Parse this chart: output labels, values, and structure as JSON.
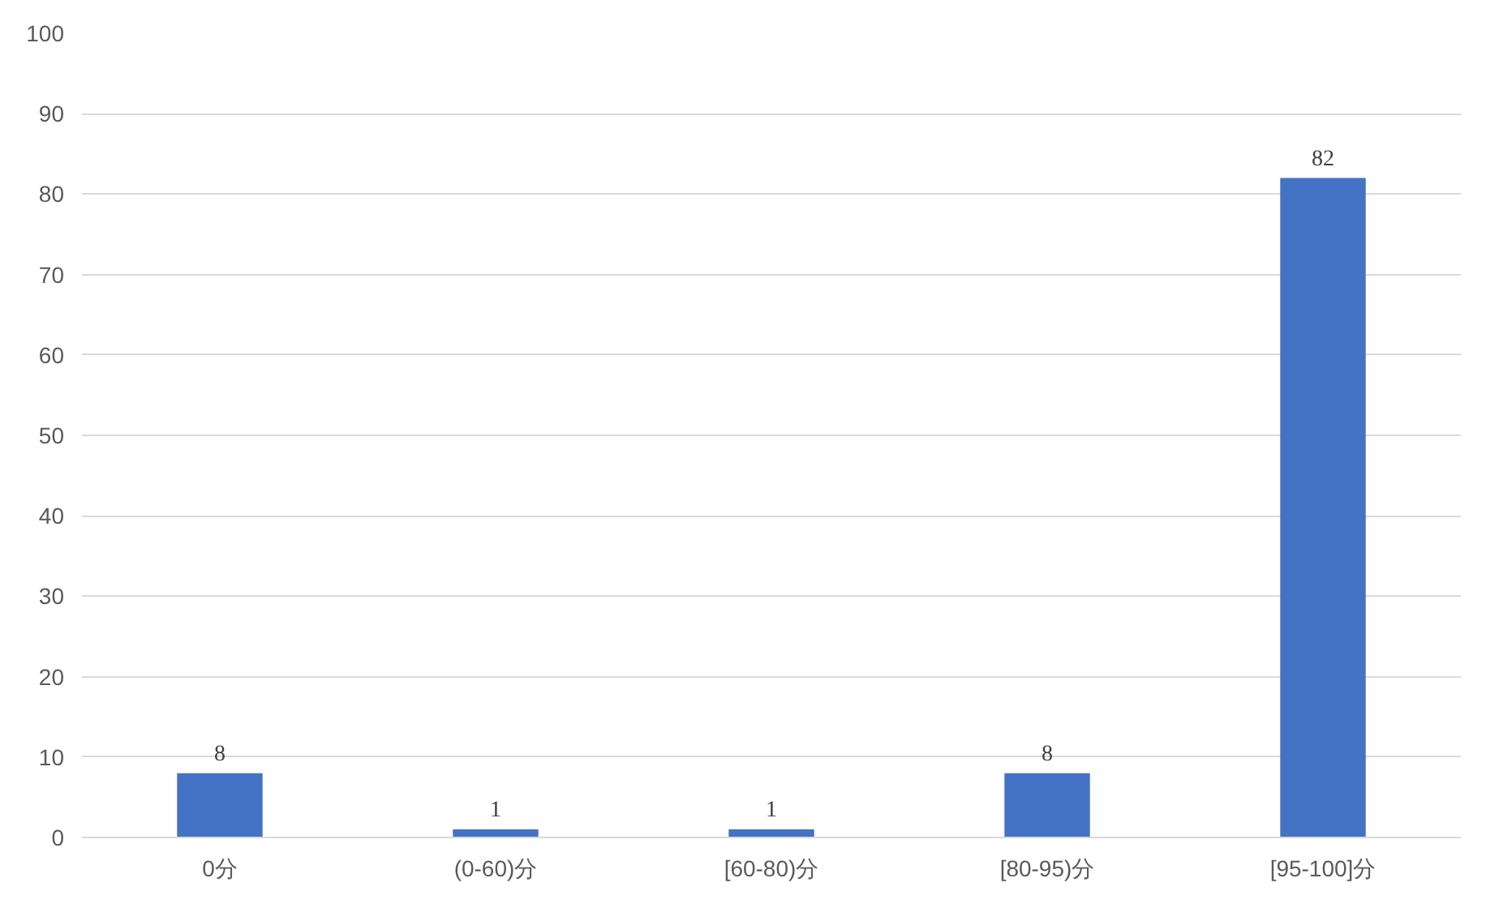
{
  "chart_data": {
    "type": "bar",
    "categories": [
      "0分",
      "(0-60)分",
      "[60-80)分",
      "[80-95)分",
      "[95-100]分"
    ],
    "values": [
      8,
      1,
      1,
      8,
      82
    ],
    "color": "#4472c4",
    "ylim": [
      0,
      100
    ],
    "yticks": [
      0,
      10,
      20,
      30,
      40,
      50,
      60,
      70,
      80,
      90,
      100
    ],
    "grid": "y",
    "data_labels": true
  }
}
